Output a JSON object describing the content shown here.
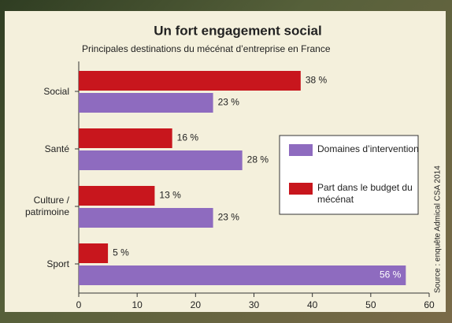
{
  "chart_data": {
    "type": "bar",
    "orientation": "horizontal",
    "title": "Un fort engagement social",
    "subtitle": "Principales destinations du mécénat d’entreprise en France",
    "source": "Source : enquête Admical CSA 2014",
    "categories": [
      "Social",
      "Santé",
      "Culture / patrimoine",
      "Sport"
    ],
    "series": [
      {
        "name": "Domaines d’intervention",
        "color": "#8e6bbf",
        "values": [
          23,
          28,
          23,
          56
        ],
        "value_labels": [
          "23 %",
          "28 %",
          "23 %",
          "56 %"
        ]
      },
      {
        "name": "Part dans le budget du mécénat",
        "color": "#c8161d",
        "values": [
          38,
          16,
          13,
          5
        ],
        "value_labels": [
          "38 %",
          "16 %",
          "13 %",
          "5 %"
        ]
      }
    ],
    "xlim": [
      0,
      60
    ],
    "xticks": [
      0,
      10,
      20,
      30,
      40,
      50,
      60
    ],
    "grid": false
  }
}
